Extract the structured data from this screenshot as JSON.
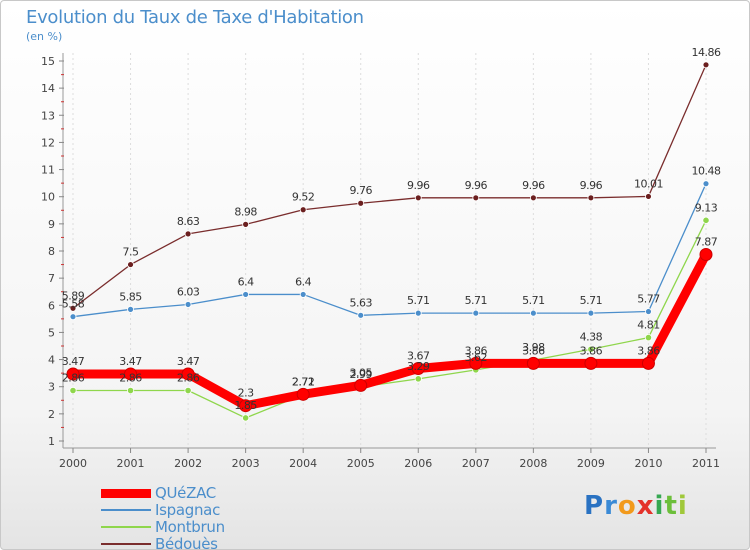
{
  "chart_data": {
    "type": "line",
    "title": "Evolution du Taux de Taxe d'Habitation",
    "ylabel": "(en %)",
    "xlabel": "",
    "categories": [
      "2000",
      "2001",
      "2002",
      "2003",
      "2004",
      "2005",
      "2006",
      "2007",
      "2008",
      "2009",
      "2010",
      "2011"
    ],
    "ylim": [
      1,
      15
    ],
    "yticks": [
      "1",
      "2",
      "3",
      "4",
      "5",
      "6",
      "7",
      "8",
      "9",
      "10",
      "11",
      "12",
      "13",
      "14",
      "15"
    ],
    "series": [
      {
        "name": "QUéZAC",
        "color": "#ff0000",
        "values": [
          3.47,
          3.47,
          3.47,
          2.3,
          2.72,
          3.05,
          3.67,
          3.86,
          3.86,
          3.86,
          3.86,
          7.87
        ],
        "labels": [
          "3.47",
          "3.47",
          "3.47",
          "2.3",
          "2.72",
          "3.05",
          "3.67",
          "3.86",
          "3.86",
          "3.86",
          "3.86",
          "7.87"
        ]
      },
      {
        "name": "Ispagnac",
        "color": "#4b8ecb",
        "values": [
          5.58,
          5.85,
          6.03,
          6.4,
          6.4,
          5.63,
          5.71,
          5.71,
          5.71,
          5.71,
          5.77,
          10.48
        ],
        "labels": [
          "5.58",
          "5.85",
          "6.03",
          "6.4",
          "6.4",
          "5.63",
          "5.71",
          "5.71",
          "5.71",
          "5.71",
          "5.77",
          "10.48"
        ]
      },
      {
        "name": "Montbrun",
        "color": "#8fd64c",
        "values": [
          2.86,
          2.86,
          2.86,
          1.85,
          2.71,
          2.99,
          3.29,
          3.62,
          3.98,
          4.38,
          4.81,
          9.13
        ],
        "labels": [
          "2.86",
          "2.86",
          "2.86",
          "1.85",
          "2.71",
          "2.99",
          "3.29",
          "3.62",
          "3.98",
          "4.38",
          "4.81",
          "9.13"
        ]
      },
      {
        "name": "Bédouès",
        "color": "#7a2d2d",
        "values": [
          5.89,
          7.5,
          8.63,
          8.98,
          9.52,
          9.76,
          9.96,
          9.96,
          9.96,
          9.96,
          10.01,
          14.86
        ],
        "labels": [
          "5.89",
          "7.5",
          "8.63",
          "8.98",
          "9.52",
          "9.76",
          "9.96",
          "9.96",
          "9.96",
          "9.96",
          "10.01",
          "14.86"
        ]
      }
    ]
  },
  "logo": {
    "p": "P",
    "r": "r",
    "o": "o",
    "x": "x",
    "i": "i",
    "t": "t",
    "i2": "i"
  }
}
